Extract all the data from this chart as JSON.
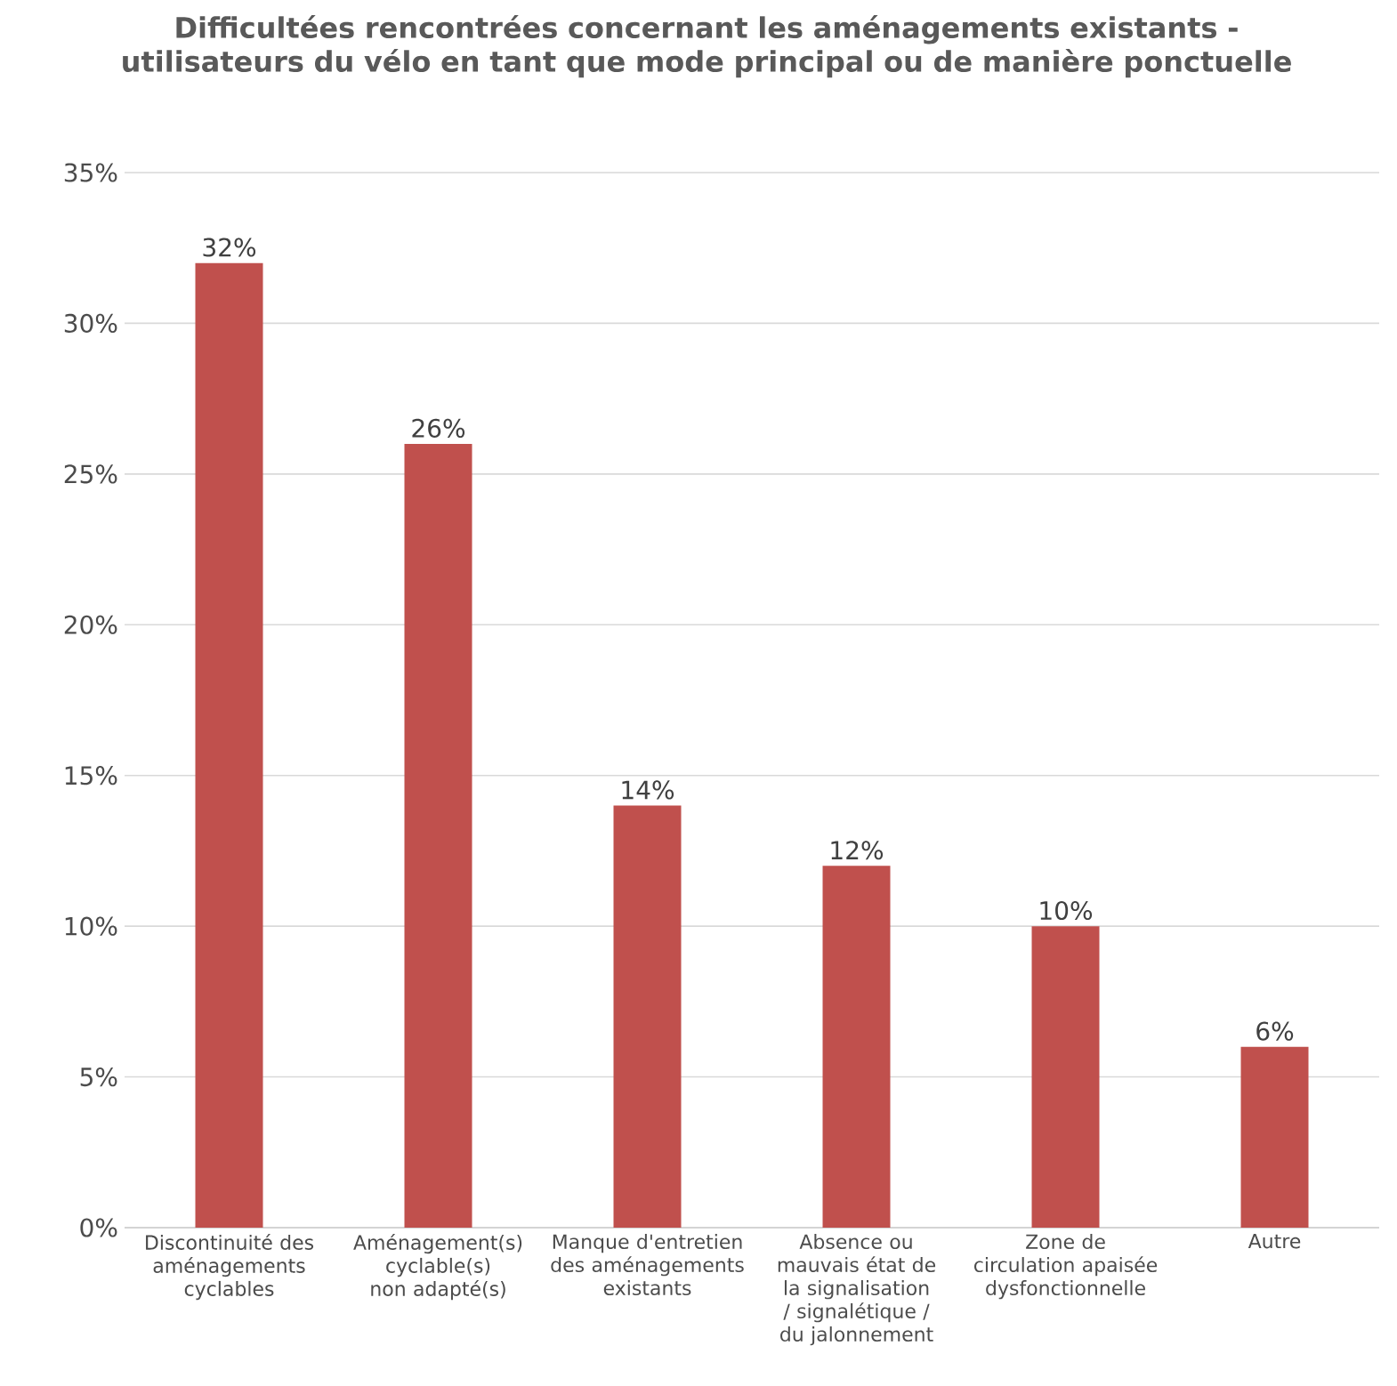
{
  "chart_data": {
    "type": "bar",
    "title": "Difficultées rencontrées concernant les aménagements existants - utilisateurs du vélo en tant que mode principal ou de manière ponctuelle",
    "categories": [
      "Discontinuité des aménagements cyclables",
      "Aménagement(s) cyclable(s) non adapté(s)",
      "Manque d'entretien des aménagements existants",
      "Absence ou mauvais état de la signalisation / signalétique / du jalonnement",
      "Zone de circulation apaisée dysfonctionnelle",
      "Autre"
    ],
    "values": [
      32,
      26,
      14,
      12,
      10,
      6
    ],
    "value_labels": [
      "32%",
      "26%",
      "14%",
      "12%",
      "10%",
      "6%"
    ],
    "color": "#c0504d",
    "ylim": [
      0,
      35
    ],
    "yticks": [
      {
        "value": 0,
        "label": "0%"
      },
      {
        "value": 5,
        "label": "5%"
      },
      {
        "value": 10,
        "label": "10%"
      },
      {
        "value": 15,
        "label": "15%"
      },
      {
        "value": 20,
        "label": "20%"
      },
      {
        "value": 25,
        "label": "25%"
      },
      {
        "value": 30,
        "label": "30%"
      },
      {
        "value": 35,
        "label": "35%"
      }
    ],
    "grid": "y"
  }
}
